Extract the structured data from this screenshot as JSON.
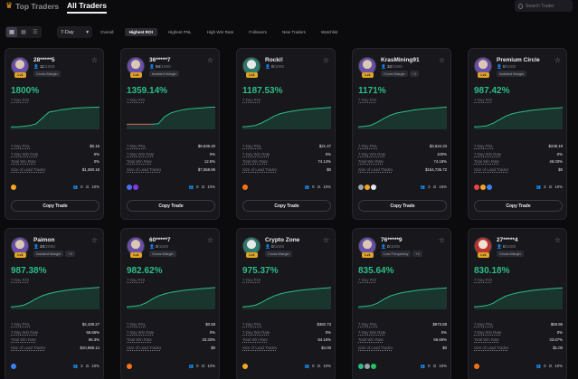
{
  "header": {
    "tabs": [
      {
        "label": "Top Traders",
        "active": false
      },
      {
        "label": "All Traders",
        "active": true
      }
    ],
    "search_placeholder": "Search Trader"
  },
  "filters": {
    "view_icons": [
      "grid-icon",
      "grid-small-icon",
      "list-icon"
    ],
    "period": "7-Day",
    "sorts": [
      {
        "label": "Overall",
        "active": false
      },
      {
        "label": "Highest ROI",
        "active": true
      },
      {
        "label": "Highest PNL",
        "active": false
      },
      {
        "label": "High Win Rate",
        "active": false
      },
      {
        "label": "Followers",
        "active": false
      },
      {
        "label": "New Traders",
        "active": false
      },
      {
        "label": "Watchlist",
        "active": false
      }
    ]
  },
  "labels": {
    "roi": "7-Day ROI",
    "pnl": "7-Day PNL",
    "win_rate": "7-Day Win Rate",
    "total_win": "Total Win Rate",
    "lead_size": "Size of Lead Trades",
    "copy": "Copy Trade"
  },
  "colors": {
    "positive": "#2ebd85",
    "negative": "#e5484d",
    "accent": "#f5a623"
  },
  "traders": [
    {
      "name": "28*****5",
      "level": "Lv1",
      "followers": "11",
      "max": "/1000",
      "tags": [
        "Cross Margin"
      ],
      "roi": "1800%",
      "pnl": "$0.15",
      "win_rate": "0%",
      "total_win": "0%",
      "lead_size": "$1,360.18",
      "coins_count": "0",
      "profit_share": "10%",
      "chart": [
        1,
        1,
        1.2,
        1.5,
        2.2,
        4.5,
        6.8,
        7.2,
        7.8,
        8,
        8.4,
        8.5,
        8.6,
        8.7,
        8.8
      ],
      "neg_until": 0
    },
    {
      "name": "36*****7",
      "level": "Lv1",
      "followers": "94",
      "max": "/1000",
      "tags": [
        "Isolated Margin"
      ],
      "roi": "1359.14%",
      "pnl": "$9,636.20",
      "win_rate": "0%",
      "total_win": "12.5%",
      "lead_size": "$7,558.95",
      "coins_count": "0",
      "profit_share": "10%",
      "chart": [
        2,
        2,
        2,
        2,
        2,
        2.2,
        5,
        6.5,
        7.2,
        7.8,
        8.1,
        8.3,
        8.5,
        8.7,
        8.8
      ],
      "neg_until": 4
    },
    {
      "name": "Rocki!",
      "level": "Lv1",
      "followers": "0",
      "max": "/1000",
      "tags": [],
      "roi": "1187.53%",
      "pnl": "$21.47",
      "win_rate": "0%",
      "total_win": "74.14%",
      "lead_size": "$0",
      "coins_count": "0",
      "profit_share": "10%",
      "chart": [
        1,
        1.2,
        1.5,
        2.5,
        3.8,
        5.2,
        6.2,
        6.8,
        7.2,
        7.6,
        7.9,
        8.1,
        8.3,
        8.5,
        8.7
      ],
      "neg_until": 0
    },
    {
      "name": "KrasMining91",
      "level": "Lv1",
      "followers": "32",
      "max": "/1000",
      "tags": [
        "Cross Margin",
        "+1"
      ],
      "roi": "1171%",
      "pnl": "$3,634.33",
      "win_rate": "100%",
      "total_win": "74.18%",
      "lead_size": "$154,736.72",
      "coins_count": "2",
      "profit_share": "15%",
      "chart": [
        1,
        1.2,
        1.6,
        2.8,
        4.2,
        5.5,
        6.4,
        6.9,
        7.3,
        7.7,
        8,
        8.2,
        8.4,
        8.6,
        8.8
      ],
      "neg_until": 0
    },
    {
      "name": "Premium Circle",
      "level": "Lv1",
      "followers": "0",
      "max": "/1000",
      "tags": [
        "Isolated Margin"
      ],
      "roi": "987.42%",
      "pnl": "$238.19",
      "win_rate": "0%",
      "total_win": "46.03%",
      "lead_size": "$0",
      "coins_count": "3",
      "profit_share": "10%",
      "chart": [
        1,
        1.1,
        1.4,
        2.4,
        3.8,
        5.2,
        6.1,
        6.7,
        7.1,
        7.5,
        7.8,
        8,
        8.2,
        8.4,
        8.6
      ],
      "neg_until": 0
    },
    {
      "name": "Paimon",
      "level": "Lv1",
      "followers": "20",
      "max": "/2000",
      "tags": [
        "Isolated Margin",
        "+2"
      ],
      "roi": "987.38%",
      "pnl": "$2,438.27",
      "win_rate": "66.66%",
      "total_win": "66.3%",
      "lead_size": "$10,988.14",
      "coins_count": "3",
      "profit_share": "10%",
      "chart": [
        1,
        1.2,
        1.6,
        2.8,
        4.2,
        5.4,
        6.2,
        6.8,
        7.2,
        7.6,
        7.9,
        8.1,
        8.3,
        8.5,
        8.7
      ],
      "neg_until": 0
    },
    {
      "name": "60*****7",
      "level": "Lv1",
      "followers": "0",
      "max": "/1000",
      "tags": [
        "Cross Margin"
      ],
      "roi": "982.62%",
      "pnl": "$0.58",
      "win_rate": "0%",
      "total_win": "33.33%",
      "lead_size": "$0",
      "coins_count": "0",
      "profit_share": "10%",
      "chart": [
        1,
        1.2,
        1.5,
        2.5,
        4,
        5.3,
        6.1,
        6.7,
        7.1,
        7.5,
        7.8,
        8,
        8.2,
        8.4,
        8.6
      ],
      "neg_until": 0
    },
    {
      "name": "Crypto Zone",
      "level": "Lv1",
      "followers": "0",
      "max": "/1000",
      "tags": [
        "Cross Margin"
      ],
      "roi": "975.37%",
      "pnl": "$382.73",
      "win_rate": "0%",
      "total_win": "84.15%",
      "lead_size": "$4.00",
      "coins_count": "0",
      "profit_share": "10%",
      "chart": [
        1,
        1.2,
        1.6,
        2.7,
        4.1,
        5.3,
        6.1,
        6.7,
        7.1,
        7.5,
        7.8,
        8,
        8.2,
        8.4,
        8.6
      ],
      "neg_until": 0
    },
    {
      "name": "76*****9",
      "level": "Lv1",
      "followers": "0",
      "max": "/1000",
      "tags": [
        "Low Frequency",
        "+1"
      ],
      "roi": "835.64%",
      "pnl": "$973.88",
      "win_rate": "0%",
      "total_win": "66.66%",
      "lead_size": "$0",
      "coins_count": "0",
      "profit_share": "10%",
      "chart": [
        1,
        1.2,
        1.5,
        2.4,
        3.9,
        5.2,
        6,
        6.6,
        7,
        7.4,
        7.7,
        7.9,
        8.1,
        8.3,
        8.5
      ],
      "neg_until": 0
    },
    {
      "name": "27*****4",
      "level": "Lv1",
      "followers": "0",
      "max": "/1000",
      "tags": [
        "Cross Margin"
      ],
      "roi": "830.18%",
      "pnl": "$69.96",
      "win_rate": "0%",
      "total_win": "33.67%",
      "lead_size": "$1.00",
      "coins_count": "0",
      "profit_share": "10%",
      "chart": [
        1,
        1.2,
        1.5,
        2.4,
        3.9,
        5.2,
        6,
        6.6,
        7,
        7.4,
        7.7,
        7.9,
        8.1,
        8.3,
        8.5
      ],
      "neg_until": 0
    }
  ]
}
